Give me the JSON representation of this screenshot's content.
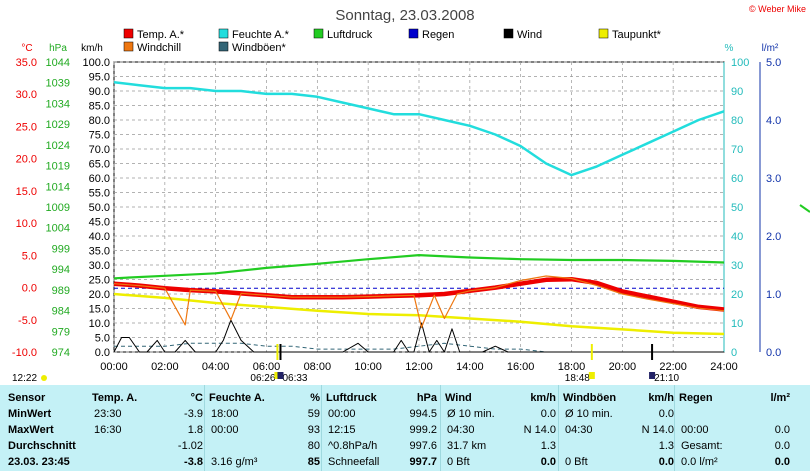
{
  "header": {
    "title": "Sonntag, 23.03.2008",
    "copyright": "© Weber Mike"
  },
  "colors": {
    "temp": "#ee0000",
    "windchill": "#ee7711",
    "humidity": "#22dddd",
    "pressure": "#22cc22",
    "rain": "#0000cc",
    "wind": "#000000",
    "gust": "#336677",
    "dewpoint": "#eeee00",
    "table_bg": "#c4f1f6"
  },
  "legend": [
    {
      "label": "Temp. A.*",
      "color": "#ee0000",
      "icon": "square-icon"
    },
    {
      "label": "Feuchte A.*",
      "color": "#22dddd",
      "icon": "square-icon"
    },
    {
      "label": "Luftdruck",
      "color": "#22cc22",
      "icon": "square-icon"
    },
    {
      "label": "Regen",
      "color": "#0000cc",
      "icon": "square-icon"
    },
    {
      "label": "Wind",
      "color": "#000000",
      "icon": "square-icon"
    },
    {
      "label": "Taupunkt*",
      "color": "#eeee00",
      "icon": "square-icon"
    },
    {
      "label": "Windchill",
      "color": "#ee7711",
      "icon": "square-icon"
    },
    {
      "label": "Windböen*",
      "color": "#336677",
      "icon": "square-icon"
    }
  ],
  "chart_data": {
    "type": "line",
    "axis_units": {
      "temp": "°C",
      "pressure": "hPa",
      "wind": "km/h",
      "humidity": "%",
      "rain": "l/m²"
    },
    "axes": {
      "temp_ticks": [
        "35.0",
        "30.0",
        "25.0",
        "20.0",
        "15.0",
        "10.0",
        "5.0",
        "0.0",
        "-5.0",
        "-10.0"
      ],
      "pressure_ticks": [
        "1044",
        "1039",
        "1034",
        "1029",
        "1024",
        "1019",
        "1014",
        "1009",
        "1004",
        "999",
        "994",
        "989",
        "984",
        "979",
        "974"
      ],
      "wind_ticks": [
        "100.0",
        "95.0",
        "90.0",
        "85.0",
        "80.0",
        "75.0",
        "70.0",
        "65.0",
        "60.0",
        "55.0",
        "50.0",
        "45.0",
        "40.0",
        "35.0",
        "30.0",
        "25.0",
        "20.0",
        "15.0",
        "10.0",
        "5.0",
        "0.0"
      ],
      "humidity_ticks": [
        "100",
        "90",
        "80",
        "70",
        "60",
        "50",
        "40",
        "30",
        "20",
        "10",
        "0"
      ],
      "rain_ticks": [
        "5.0",
        "4.0",
        "3.0",
        "2.0",
        "1.0",
        "0.0"
      ],
      "x_ticks": [
        "00:00",
        "02:00",
        "04:00",
        "06:00",
        "08:00",
        "10:00",
        "12:00",
        "14:00",
        "16:00",
        "18:00",
        "20:00",
        "22:00",
        "24:00"
      ],
      "temp_range": [
        -10,
        35
      ],
      "pressure_range": [
        974,
        1044
      ],
      "wind_range": [
        0,
        100
      ],
      "humidity_range": [
        0,
        100
      ],
      "rain_range": [
        0,
        5
      ],
      "x_range_hours": [
        0,
        24
      ],
      "grid": true
    },
    "sun_markers": [
      {
        "label": "06:26",
        "time": 6.43
      },
      {
        "label": "06:33",
        "time": 6.55
      },
      {
        "label": "18:48",
        "time": 18.8
      },
      {
        "label": "21:10",
        "time": 21.17
      },
      {
        "label": "12:22",
        "time": null
      }
    ],
    "series": [
      {
        "name": "Temp. A.*",
        "axis": "temp",
        "x": [
          0,
          1,
          2,
          3,
          4,
          5,
          6,
          7,
          8,
          9,
          10,
          11,
          12,
          13,
          14,
          15,
          16,
          17,
          18,
          19,
          20,
          21,
          22,
          23,
          24
        ],
        "y": [
          0.6,
          0.3,
          -0.1,
          -0.4,
          -0.6,
          -0.9,
          -1.2,
          -1.5,
          -1.5,
          -1.5,
          -1.4,
          -1.3,
          -1.2,
          -1.0,
          -0.5,
          0.0,
          0.6,
          1.2,
          1.3,
          0.7,
          -0.6,
          -1.4,
          -2.2,
          -3.0,
          -3.4
        ]
      },
      {
        "name": "Windchill",
        "axis": "temp",
        "x": [
          0,
          1,
          2,
          2.8,
          3,
          4,
          4.6,
          5,
          6,
          7,
          8,
          9,
          10,
          11,
          11.8,
          12.1,
          12.6,
          13,
          13.5,
          14,
          15,
          16,
          17,
          18,
          19,
          20,
          21,
          22,
          23,
          24
        ],
        "y": [
          0.6,
          0.3,
          -0.1,
          -5.8,
          -0.4,
          -0.6,
          -5.0,
          -0.9,
          -1.2,
          -1.5,
          -1.5,
          -1.5,
          -1.4,
          -1.3,
          -1.2,
          -6.2,
          -1.2,
          -4.8,
          -1.0,
          -0.5,
          0.0,
          1.1,
          1.8,
          1.4,
          0.3,
          -1.0,
          -1.8,
          -2.5,
          -3.2,
          -3.6
        ]
      },
      {
        "name": "Feuchte A.*",
        "axis": "humidity",
        "x": [
          0,
          1,
          2,
          3,
          4,
          5,
          6,
          7,
          8,
          9,
          10,
          11,
          12,
          13,
          14,
          15,
          16,
          17,
          18,
          19,
          20,
          21,
          22,
          23,
          24
        ],
        "y": [
          93,
          92,
          91,
          91,
          90,
          90,
          89,
          89,
          88,
          86,
          84,
          82,
          82,
          80,
          78,
          75,
          71,
          65,
          61,
          64,
          68,
          72,
          76,
          80,
          83
        ]
      },
      {
        "name": "Luftdruck",
        "axis": "pressure",
        "x": [
          0,
          2,
          4,
          6,
          8,
          10,
          12,
          14,
          16,
          18,
          20,
          22,
          24
        ],
        "y": [
          991.8,
          992.4,
          993.0,
          994.3,
          995.3,
          996.4,
          997.4,
          996.8,
          996.4,
          996.2,
          996.2,
          996.0,
          995.6
        ]
      },
      {
        "name": "Taupunkt*",
        "axis": "temp",
        "x": [
          0,
          2,
          4,
          6,
          8,
          10,
          12,
          14,
          16,
          18,
          20,
          22,
          24
        ],
        "y": [
          -1.0,
          -1.6,
          -2.4,
          -3.0,
          -3.6,
          -4.1,
          -4.3,
          -4.8,
          -5.3,
          -6.0,
          -6.5,
          -7.0,
          -7.2
        ]
      },
      {
        "name": "Regen",
        "axis": "rain",
        "x": [
          0,
          24
        ],
        "y": [
          1.1,
          1.1
        ]
      },
      {
        "name": "Wind",
        "axis": "wind",
        "x": [
          0,
          0.3,
          0.6,
          1.0,
          1.3,
          1.7,
          2.0,
          2.4,
          2.8,
          3.2,
          3.6,
          4.0,
          4.3,
          4.6,
          5.0,
          5.5,
          6.0,
          7.0,
          8.0,
          9.0,
          9.6,
          10.0,
          10.5,
          11.0,
          11.3,
          11.6,
          11.8,
          12.1,
          12.4,
          12.7,
          13.0,
          13.3,
          13.6,
          14.0,
          14.5,
          15.0,
          15.5,
          16.0,
          17.0,
          18.0,
          19.0,
          20.0,
          21.0,
          22.0,
          23.0,
          24.0
        ],
        "y": [
          0,
          5,
          5,
          0,
          0,
          4,
          0,
          0,
          4,
          0,
          0,
          0,
          4,
          11,
          4,
          0,
          0,
          0,
          0,
          0,
          3,
          0,
          0,
          0,
          4,
          0,
          0,
          10,
          0,
          4,
          0,
          8,
          0,
          0,
          0,
          2,
          0,
          0,
          0,
          0,
          0,
          0,
          0,
          0,
          0,
          0
        ]
      },
      {
        "name": "Windböen*",
        "axis": "wind",
        "x": [
          0,
          1,
          2,
          3,
          4,
          5,
          6,
          7,
          8,
          9,
          10,
          11,
          12,
          13,
          14,
          15,
          16,
          17,
          18,
          19,
          20,
          21,
          22,
          23,
          24
        ],
        "y": [
          2,
          2,
          2,
          3,
          3,
          3,
          2,
          2,
          1,
          1,
          1,
          1,
          2,
          3,
          2,
          1,
          1,
          0,
          0,
          0,
          0,
          0,
          0,
          0,
          0
        ]
      }
    ]
  },
  "table": {
    "cols": [
      {
        "head": "Temp. A.",
        "unit": "°C",
        "rows": [
          [
            "23:30",
            "-3.9"
          ],
          [
            "16:30",
            "1.8"
          ],
          [
            "",
            "-1.02"
          ],
          [
            "",
            "-3.8"
          ]
        ]
      },
      {
        "head": "Feuchte A.",
        "unit": "%",
        "rows": [
          [
            "18:00",
            "59"
          ],
          [
            "00:00",
            "93"
          ],
          [
            "",
            "80"
          ],
          [
            "3.16 g/m³",
            "85"
          ]
        ]
      },
      {
        "head": "Luftdruck",
        "unit": "hPa",
        "rows": [
          [
            "00:00",
            "994.5"
          ],
          [
            "12:15",
            "999.2"
          ],
          [
            "^0.8hPa/h",
            "997.6"
          ],
          [
            "Schneefall",
            "997.7"
          ]
        ]
      },
      {
        "head": "Wind",
        "unit": "km/h",
        "rows": [
          [
            "Ø 10 min.",
            "0.0"
          ],
          [
            "04:30",
            "N 14.0"
          ],
          [
            "31.7 km",
            "1.3"
          ],
          [
            "0 Bft",
            "0.0"
          ]
        ]
      },
      {
        "head": "Windböen",
        "unit": "km/h",
        "rows": [
          [
            "Ø 10 min.",
            "0.0"
          ],
          [
            "04:30",
            "N 14.0"
          ],
          [
            "",
            "1.3"
          ],
          [
            "0 Bft",
            "0.0"
          ]
        ]
      },
      {
        "head": "Regen",
        "unit": "l/m²",
        "rows": [
          [
            "",
            ""
          ],
          [
            "00:00",
            "0.0"
          ],
          [
            "Gesamt:",
            "0.0"
          ],
          [
            "0.0 l/m²",
            "0.0"
          ]
        ]
      }
    ],
    "row_labels": [
      "Sensor",
      "MinWert",
      "MaxWert",
      "Durchschnitt",
      "23.03.  23:45"
    ]
  }
}
